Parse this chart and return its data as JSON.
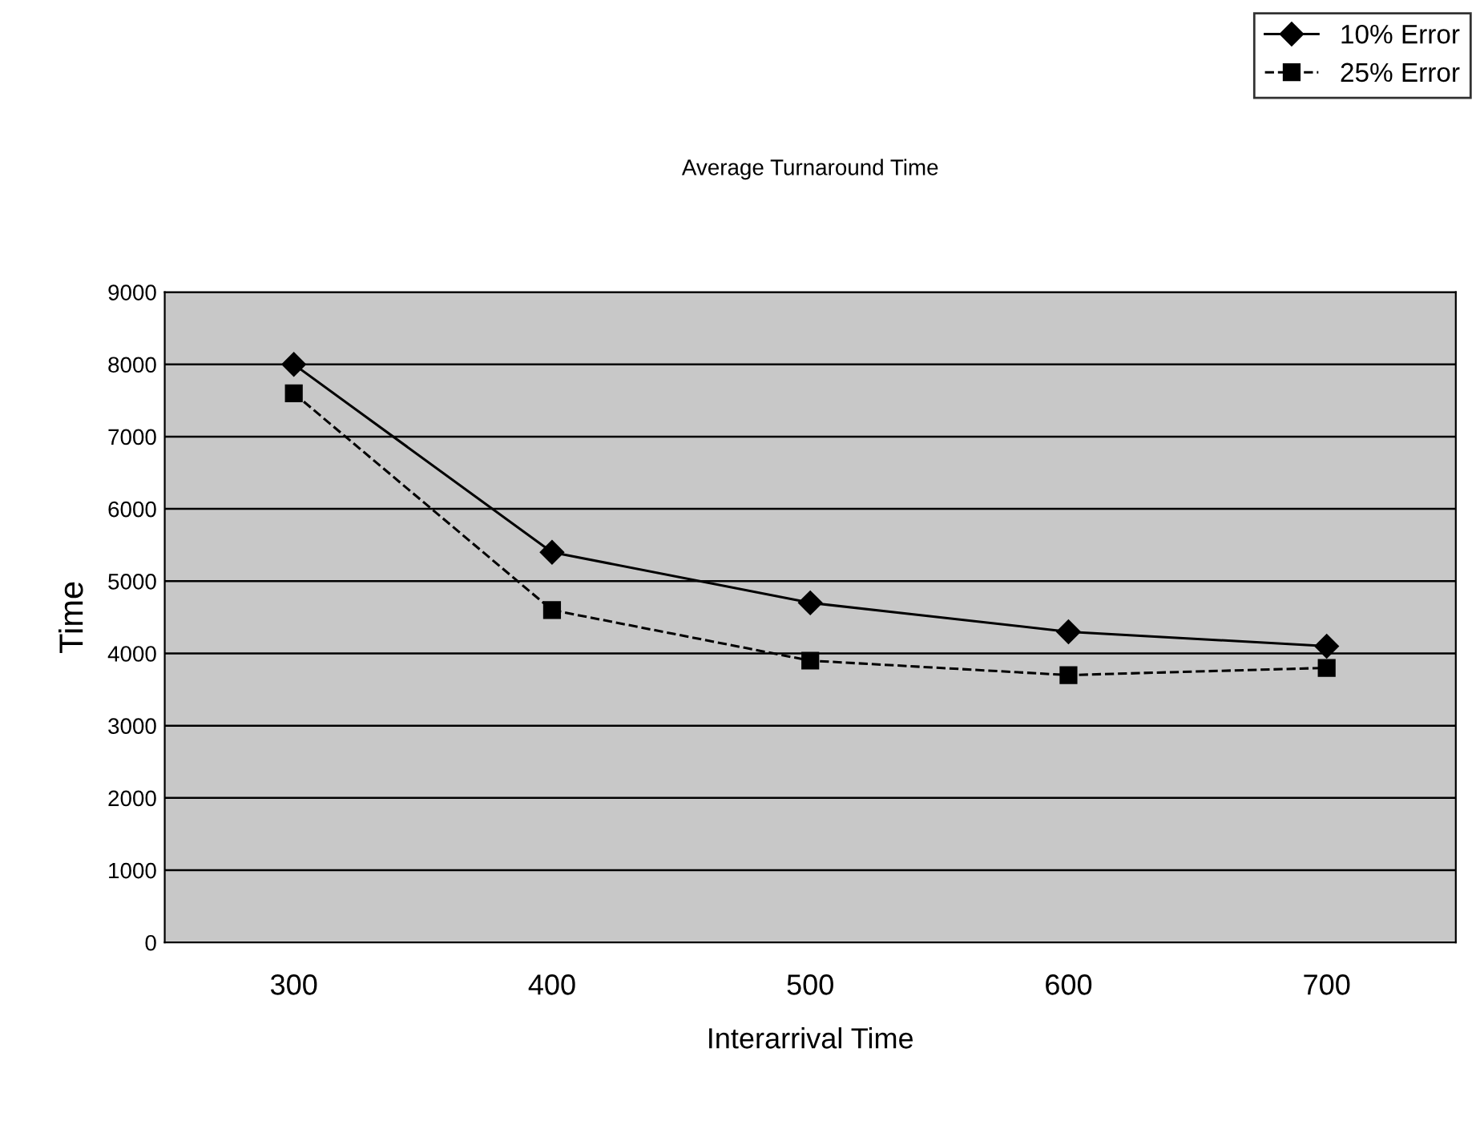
{
  "chart_data": {
    "type": "line",
    "title": "Average Turnaround Time",
    "xlabel": "Interarrival Time",
    "ylabel": "Time",
    "x": [
      300,
      400,
      500,
      600,
      700
    ],
    "series": [
      {
        "name": "10% Error",
        "color": "#000000",
        "marker": "diamond",
        "line_style": "solid",
        "values": [
          8000,
          5400,
          4700,
          4300,
          4100
        ]
      },
      {
        "name": "25% Error",
        "color": "#000000",
        "marker": "square",
        "line_style": "dashed",
        "values": [
          7600,
          4600,
          3900,
          3700,
          3800
        ]
      }
    ],
    "xlim": [
      250,
      750
    ],
    "xticks": [
      300,
      400,
      500,
      600,
      700
    ],
    "ylim": [
      0,
      9000
    ],
    "yticks": [
      0,
      1000,
      2000,
      3000,
      4000,
      5000,
      6000,
      7000,
      8000,
      9000
    ],
    "grid": "y",
    "legend": "top right"
  }
}
